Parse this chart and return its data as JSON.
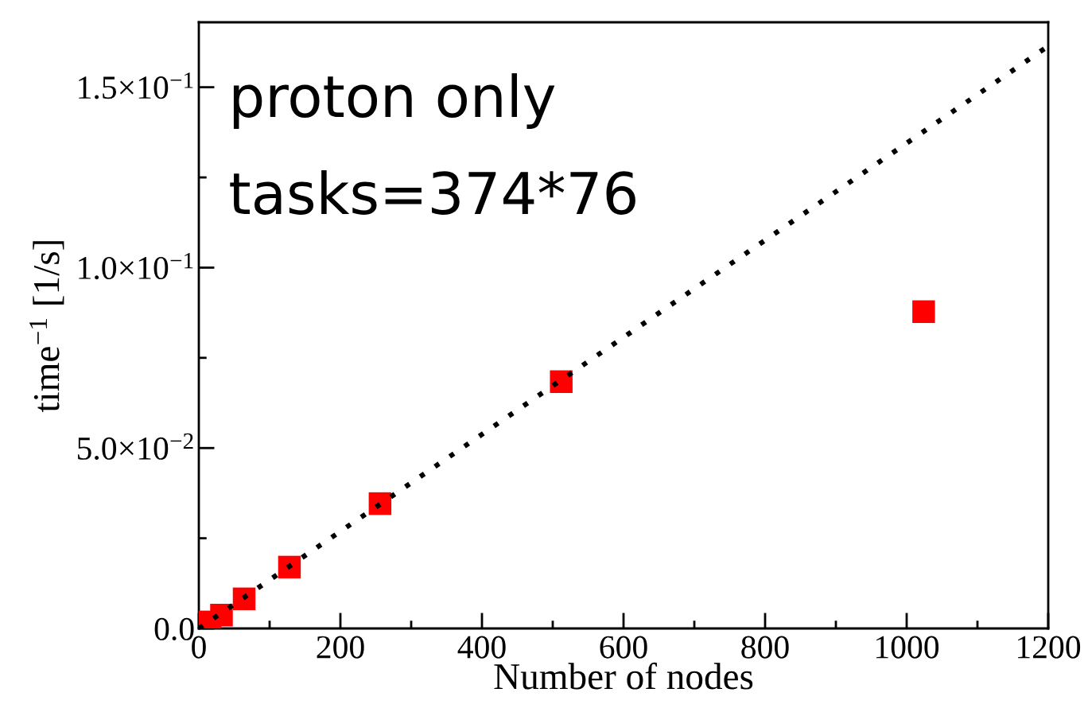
{
  "chart_data": {
    "type": "scatter",
    "xlabel": "Number of nodes",
    "ylabel": "time$^{−1}$ [1/s]",
    "annotations": [
      "proton only",
      "tasks=374*76"
    ],
    "xlim": [
      0,
      1200
    ],
    "ylim": [
      0,
      0.168
    ],
    "xticks": [
      0,
      {
        "value": 100,
        "label": null
      },
      200,
      {
        "value": 300,
        "label": null
      },
      400,
      {
        "value": 500,
        "label": null
      },
      600,
      {
        "value": 700,
        "label": null
      },
      800,
      {
        "value": 900,
        "label": null
      },
      1000,
      {
        "value": 1100,
        "label": null
      },
      1200
    ],
    "yticks": [
      {
        "value": 0,
        "label": "0.0"
      },
      {
        "value": 0.025,
        "label": null
      },
      {
        "value": 0.05,
        "label": "5.0×10$^{−2}$"
      },
      {
        "value": 0.075,
        "label": null
      },
      {
        "value": 0.1,
        "label": "1.0×10$^{−1}$"
      },
      {
        "value": 0.125,
        "label": null
      },
      {
        "value": 0.15,
        "label": "1.5×10$^{−1}$"
      }
    ],
    "grid": false,
    "legend": false,
    "series": [
      {
        "color": "#ff0000",
        "marker": "square",
        "x": [
          16,
          32,
          64,
          128,
          256,
          512,
          1024
        ],
        "values": [
          0.0018,
          0.0037,
          0.0082,
          0.017,
          0.0346,
          0.0684,
          0.0878
        ]
      },
      {
        "type": "line",
        "color": "#000000",
        "line_style": "dotted",
        "marker": "none",
        "x": [
          0,
          1200
        ],
        "values": [
          0,
          0.1614
        ]
      }
    ]
  }
}
